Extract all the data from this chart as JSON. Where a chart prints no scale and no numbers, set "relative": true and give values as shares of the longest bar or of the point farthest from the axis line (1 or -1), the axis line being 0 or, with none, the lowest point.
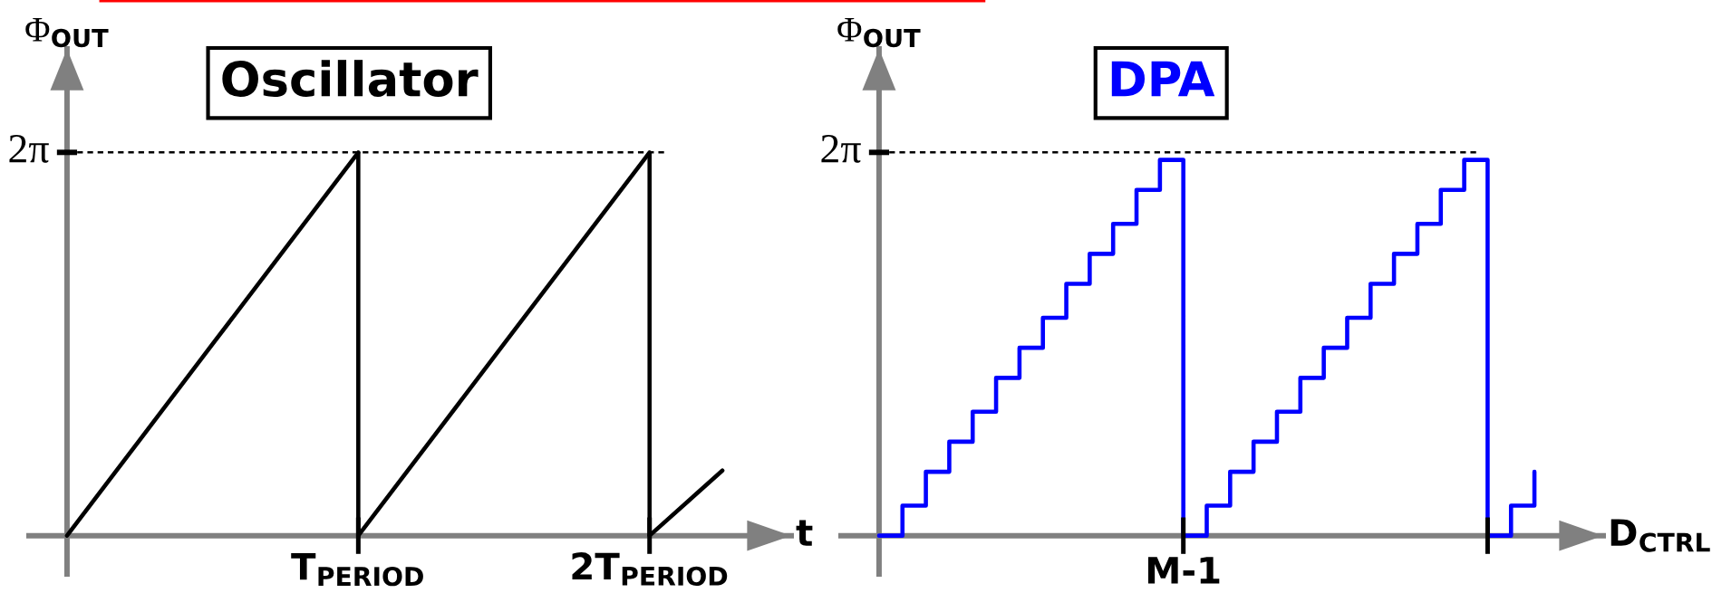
{
  "chart_data": [
    {
      "type": "line",
      "title": "Oscillator",
      "xlabel": "t",
      "ylabel": "Φ$_{OUT}$",
      "relative": true,
      "categories": [
        null,
        null,
        null,
        null,
        "T$_{PERIOD}$",
        null,
        null,
        null,
        "2T$_{PERIOD}$",
        null
      ],
      "series": [
        {
          "color": "#000000",
          "values": [
            0,
            0.25,
            0.5,
            0.75,
            1,
            null,
            null,
            null,
            0,
            0.17
          ]
        },
        {
          "type": "bar",
          "color": "#000000",
          "values": [
            null,
            null,
            null,
            null,
            1,
            null,
            null,
            null,
            1,
            null
          ]
        },
        {
          "color": "#000000",
          "values": [
            null,
            null,
            null,
            null,
            0,
            0.25,
            0.5,
            0.75,
            1,
            null
          ]
        }
      ],
      "ref_lines": [
        {
          "axis": "y",
          "value": 1,
          "label": "2π",
          "color": "#000000",
          "line_style": "dashed"
        }
      ]
    },
    {
      "type": "step",
      "title": "DPA",
      "xlabel": "D$_{CTRL}$",
      "ylabel": "Φ$_{OUT}$",
      "relative": true,
      "categories": [
        null,
        null,
        null,
        null,
        null,
        null,
        null,
        null,
        null,
        null,
        null,
        null,
        null,
        null,
        null,
        null,
        null,
        null,
        null,
        null,
        null,
        null,
        null,
        null,
        null,
        null,
        null,
        null,
        null
      ],
      "series": [
        {
          "color": "#0000ff",
          "values": [
            0,
            0.08,
            0.17,
            0.25,
            0.33,
            0.42,
            0.5,
            0.58,
            0.67,
            0.75,
            0.83,
            0.92,
            1,
            0,
            0.08,
            0.17,
            0.25,
            0.33,
            0.42,
            0.5,
            0.58,
            0.67,
            0.75,
            0.83,
            0.92,
            1,
            0,
            0.08,
            0.17
          ]
        }
      ],
      "ref_lines": [
        {
          "axis": "y",
          "value": 1.02,
          "label": "2π",
          "color": "#000000",
          "line_style": "dashed"
        }
      ],
      "annotations": [
        "M-1"
      ]
    }
  ]
}
